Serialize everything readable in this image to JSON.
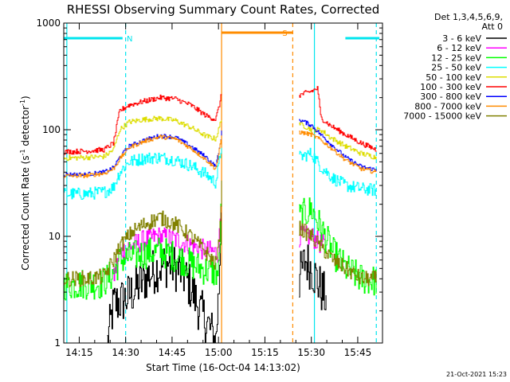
{
  "title": "RHESSI Observing Summary Count Rates, Corrected",
  "footer_date": "21-Oct-2021 15:23",
  "chart_data": {
    "type": "line",
    "xlabel": "Start Time (16-Oct-04 14:13:02)",
    "ylabel_parts": [
      "Corrected Count Rate (s",
      "-1",
      " detector",
      "-1",
      ")"
    ],
    "y_scale": "log",
    "ylim": [
      1,
      1000
    ],
    "xlim": [
      "14:10",
      "15:53"
    ],
    "x_ticks": [
      "14:15",
      "14:30",
      "14:45",
      "15:00",
      "15:15",
      "15:30",
      "15:45"
    ],
    "y_ticks": [
      "1",
      "10",
      "100",
      "1000"
    ],
    "legend_header": [
      "Det 1,3,4,5,6,9,",
      "Att 0"
    ],
    "legend_position": "right",
    "flags": [
      {
        "label": "N",
        "color": "#00e5ee",
        "marks": [
          {
            "start": "14:10",
            "end": "14:29"
          },
          {
            "start": "15:41",
            "end": "15:52"
          }
        ]
      },
      {
        "label": "S",
        "color": "#ff8c00",
        "marks": [
          {
            "start": "15:01",
            "end": "15:24"
          }
        ]
      }
    ],
    "vertical_lines": [
      {
        "time": "14:11",
        "color": "#00e5ee",
        "dashed": false
      },
      {
        "time": "14:30",
        "color": "#00e5ee",
        "dashed": true
      },
      {
        "time": "15:01",
        "color": "#ff8c00",
        "dashed": false
      },
      {
        "time": "15:24",
        "color": "#ff8c00",
        "dashed": true
      },
      {
        "time": "15:31",
        "color": "#00e5ee",
        "dashed": false
      },
      {
        "time": "15:51",
        "color": "#00e5ee",
        "dashed": true
      }
    ],
    "series": [
      {
        "name": "3 - 6 keV",
        "color": "#000000",
        "jitter": 0.45,
        "segments": [
          [
            [
              "14:24",
              1
            ],
            [
              "14:26",
              2.3
            ],
            [
              "14:30",
              2.6
            ],
            [
              "14:33",
              3.2
            ],
            [
              "14:37",
              4.2
            ],
            [
              "14:40",
              5
            ],
            [
              "14:44",
              5.6
            ],
            [
              "14:48",
              4.6
            ],
            [
              "14:51",
              3.3
            ],
            [
              "14:54",
              2
            ],
            [
              "14:57",
              1.4
            ],
            [
              "14:59",
              1
            ],
            [
              "15:00",
              3
            ],
            [
              "15:01",
              30
            ]
          ],
          [
            [
              "15:26",
              4
            ],
            [
              "15:28",
              6
            ],
            [
              "15:30",
              5
            ],
            [
              "15:33",
              3.2
            ],
            [
              "15:35",
              2.5
            ]
          ]
        ]
      },
      {
        "name": "6 - 12 keV",
        "color": "#ff00ff",
        "jitter": 0.2,
        "segments": [
          [
            [
              "14:26",
              4
            ],
            [
              "14:28",
              7
            ],
            [
              "14:31",
              8
            ],
            [
              "14:35",
              9
            ],
            [
              "14:40",
              10
            ],
            [
              "14:45",
              9.5
            ],
            [
              "14:50",
              8.5
            ],
            [
              "14:55",
              7.5
            ],
            [
              "15:00",
              7
            ],
            [
              "15:01",
              30
            ]
          ],
          [
            [
              "15:26",
              10
            ],
            [
              "15:30",
              10
            ],
            [
              "15:33",
              8.5
            ],
            [
              "15:35",
              8
            ]
          ]
        ]
      },
      {
        "name": "12 - 25 keV",
        "color": "#00ff00",
        "jitter": 0.3,
        "segments": [
          [
            [
              "14:10",
              3.5
            ],
            [
              "14:16",
              3.6
            ],
            [
              "14:22",
              3.6
            ],
            [
              "14:26",
              4.5
            ],
            [
              "14:28",
              6
            ],
            [
              "14:32",
              6.5
            ],
            [
              "14:37",
              7
            ],
            [
              "14:41",
              7.2
            ],
            [
              "14:46",
              6.5
            ],
            [
              "14:51",
              5.5
            ],
            [
              "14:56",
              4.8
            ],
            [
              "15:00",
              4.5
            ],
            [
              "15:01",
              25
            ]
          ],
          [
            [
              "15:26",
              15
            ],
            [
              "15:30",
              18
            ],
            [
              "15:33",
              12
            ],
            [
              "15:37",
              7
            ],
            [
              "15:41",
              5
            ],
            [
              "15:46",
              4
            ],
            [
              "15:51",
              3.8
            ]
          ]
        ]
      },
      {
        "name": "25 - 50 keV",
        "color": "#00ffff",
        "jitter": 0.12,
        "segments": [
          [
            [
              "14:10",
              25
            ],
            [
              "14:17",
              25
            ],
            [
              "14:23",
              26
            ],
            [
              "14:26",
              29
            ],
            [
              "14:28",
              40
            ],
            [
              "14:31",
              50
            ],
            [
              "14:36",
              54
            ],
            [
              "14:41",
              55
            ],
            [
              "14:46",
              52
            ],
            [
              "14:51",
              46
            ],
            [
              "14:56",
              38
            ],
            [
              "14:59",
              32
            ],
            [
              "15:00",
              45
            ],
            [
              "15:01",
              75
            ]
          ],
          [
            [
              "15:26",
              55
            ],
            [
              "15:30",
              60
            ],
            [
              "15:33",
              45
            ],
            [
              "15:37",
              35
            ],
            [
              "15:41",
              30
            ],
            [
              "15:46",
              28
            ],
            [
              "15:51",
              27
            ]
          ]
        ]
      },
      {
        "name": "50 - 100 keV",
        "color": "#dddd00",
        "jitter": 0.05,
        "segments": [
          [
            [
              "14:10",
              54
            ],
            [
              "14:17",
              55
            ],
            [
              "14:23",
              56
            ],
            [
              "14:26",
              65
            ],
            [
              "14:28",
              100
            ],
            [
              "14:31",
              118
            ],
            [
              "14:36",
              125
            ],
            [
              "14:41",
              128
            ],
            [
              "14:46",
              122
            ],
            [
              "14:51",
              105
            ],
            [
              "14:56",
              87
            ],
            [
              "14:59",
              82
            ],
            [
              "15:00",
              100
            ],
            [
              "15:01",
              130
            ]
          ],
          [
            [
              "15:26",
              115
            ],
            [
              "15:30",
              100
            ],
            [
              "15:33",
              100
            ],
            [
              "15:36",
              85
            ],
            [
              "15:41",
              70
            ],
            [
              "15:46",
              60
            ],
            [
              "15:51",
              55
            ]
          ]
        ]
      },
      {
        "name": "100 - 300 keV",
        "color": "#ff0000",
        "jitter": 0.05,
        "segments": [
          [
            [
              "14:10",
              62
            ],
            [
              "14:17",
              63
            ],
            [
              "14:23",
              65
            ],
            [
              "14:26",
              75
            ],
            [
              "14:28",
              150
            ],
            [
              "14:31",
              170
            ],
            [
              "14:36",
              185
            ],
            [
              "14:41",
              200
            ],
            [
              "14:46",
              195
            ],
            [
              "14:51",
              170
            ],
            [
              "14:56",
              135
            ],
            [
              "14:59",
              125
            ],
            [
              "15:00",
              160
            ],
            [
              "15:01",
              220
            ]
          ],
          [
            [
              "15:26",
              210
            ],
            [
              "15:30",
              230
            ],
            [
              "15:32",
              245
            ],
            [
              "15:33",
              130
            ],
            [
              "15:36",
              110
            ],
            [
              "15:41",
              90
            ],
            [
              "15:46",
              75
            ],
            [
              "15:51",
              65
            ]
          ]
        ]
      },
      {
        "name": "300 - 800 keV",
        "color": "#0000ff",
        "jitter": 0.04,
        "segments": [
          [
            [
              "14:10",
              38
            ],
            [
              "14:17",
              38
            ],
            [
              "14:23",
              40
            ],
            [
              "14:26",
              44
            ],
            [
              "14:28",
              55
            ],
            [
              "14:31",
              70
            ],
            [
              "14:36",
              80
            ],
            [
              "14:41",
              88
            ],
            [
              "14:46",
              85
            ],
            [
              "14:51",
              70
            ],
            [
              "14:56",
              55
            ],
            [
              "14:59",
              45
            ],
            [
              "15:00",
              60
            ],
            [
              "15:01",
              95
            ]
          ],
          [
            [
              "15:26",
              125
            ],
            [
              "15:30",
              110
            ],
            [
              "15:33",
              90
            ],
            [
              "15:37",
              70
            ],
            [
              "15:41",
              55
            ],
            [
              "15:46",
              45
            ],
            [
              "15:51",
              42
            ]
          ]
        ]
      },
      {
        "name": "800 - 7000 keV",
        "color": "#ff8c00",
        "jitter": 0.04,
        "segments": [
          [
            [
              "14:10",
              37
            ],
            [
              "14:17",
              37
            ],
            [
              "14:23",
              39
            ],
            [
              "14:26",
              43
            ],
            [
              "14:28",
              53
            ],
            [
              "14:31",
              68
            ],
            [
              "14:36",
              78
            ],
            [
              "14:41",
              86
            ],
            [
              "14:46",
              82
            ],
            [
              "14:51",
              67
            ],
            [
              "14:56",
              52
            ],
            [
              "14:59",
              43
            ],
            [
              "15:00",
              58
            ],
            [
              "15:01",
              90
            ]
          ],
          [
            [
              "15:26",
              95
            ],
            [
              "15:30",
              90
            ],
            [
              "15:33",
              80
            ],
            [
              "15:37",
              65
            ],
            [
              "15:41",
              52
            ],
            [
              "15:46",
              43
            ],
            [
              "15:51",
              40
            ]
          ]
        ]
      },
      {
        "name": "7000 - 15000 keV",
        "color": "#808000",
        "jitter": 0.15,
        "segments": [
          [
            [
              "14:10",
              4
            ],
            [
              "14:17",
              4
            ],
            [
              "14:23",
              4.2
            ],
            [
              "14:26",
              6
            ],
            [
              "14:28",
              8
            ],
            [
              "14:32",
              11
            ],
            [
              "14:36",
              13
            ],
            [
              "14:41",
              15
            ],
            [
              "14:46",
              13
            ],
            [
              "14:51",
              10
            ],
            [
              "14:56",
              7
            ],
            [
              "14:59",
              5.5
            ],
            [
              "15:00",
              8
            ],
            [
              "15:01",
              30
            ]
          ],
          [
            [
              "15:26",
              12
            ],
            [
              "15:30",
              10
            ],
            [
              "15:33",
              8
            ],
            [
              "15:37",
              6
            ],
            [
              "15:41",
              5
            ],
            [
              "15:46",
              4
            ],
            [
              "15:51",
              4
            ]
          ]
        ]
      }
    ]
  }
}
